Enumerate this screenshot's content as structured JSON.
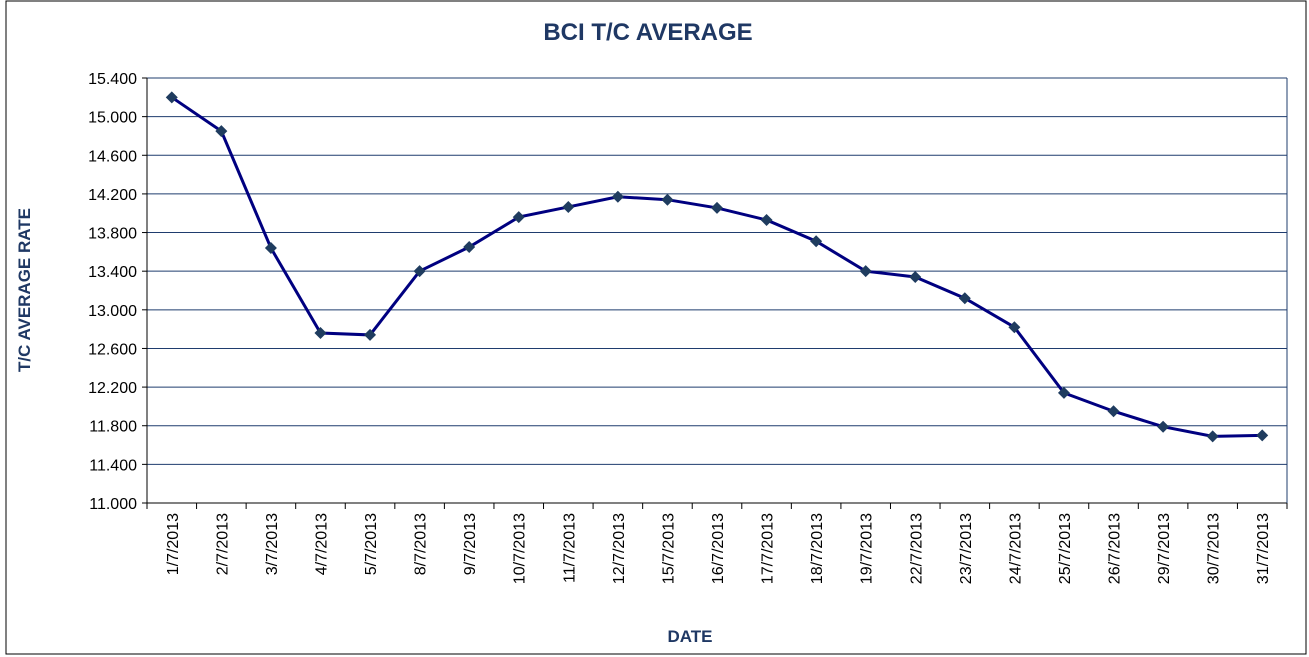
{
  "chart_data": {
    "type": "line",
    "title": "BCI T/C AVERAGE",
    "x_label": "DATE",
    "y_label": "T/C AVERAGE RATE",
    "categories": [
      "1/7/2013",
      "2/7/2013",
      "3/7/2013",
      "4/7/2013",
      "5/7/2013",
      "8/7/2013",
      "9/7/2013",
      "10/7/2013",
      "11/7/2013",
      "12/7/2013",
      "15/7/2013",
      "16/7/2013",
      "17/7/2013",
      "18/7/2013",
      "19/7/2013",
      "22/7/2013",
      "23/7/2013",
      "24/7/2013",
      "25/7/2013",
      "26/7/2013",
      "29/7/2013",
      "30/7/2013",
      "31/7/2013"
    ],
    "series": [
      {
        "name": "BCI T/C AVERAGE",
        "color": "#000080",
        "values": [
          15200,
          14850,
          13640,
          12760,
          12740,
          13400,
          13650,
          13960,
          14065,
          14170,
          14140,
          14055,
          13930,
          13710,
          13400,
          13340,
          13120,
          12820,
          12140,
          11950,
          11790,
          11690,
          11700
        ]
      }
    ],
    "ylim": [
      11000,
      15400
    ],
    "yticks": [
      {
        "value": 11000,
        "label": "11.000"
      },
      {
        "value": 11400,
        "label": "11.400"
      },
      {
        "value": 11800,
        "label": "11.800"
      },
      {
        "value": 12200,
        "label": "12.200"
      },
      {
        "value": 12600,
        "label": "12.600"
      },
      {
        "value": 13000,
        "label": "13.000"
      },
      {
        "value": 13400,
        "label": "13.400"
      },
      {
        "value": 13800,
        "label": "13.800"
      },
      {
        "value": 14200,
        "label": "14.200"
      },
      {
        "value": 14600,
        "label": "14.600"
      },
      {
        "value": 15000,
        "label": "15.000"
      },
      {
        "value": 15400,
        "label": "15.400"
      }
    ],
    "grid": true
  }
}
